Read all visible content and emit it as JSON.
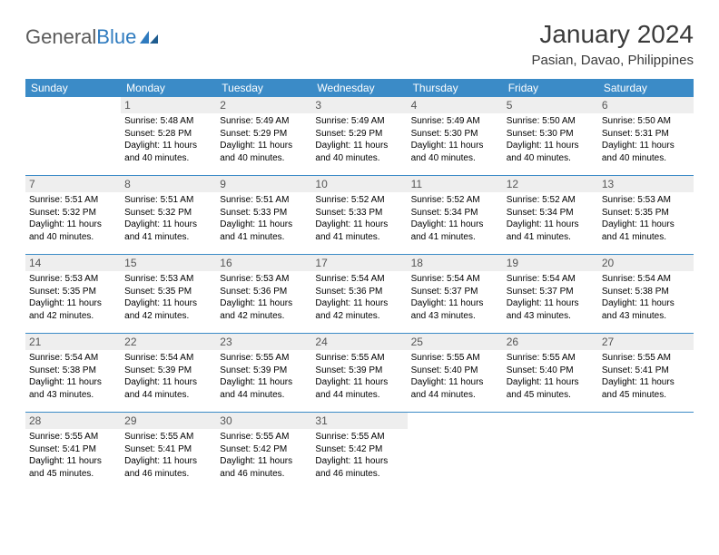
{
  "logo": {
    "text1": "General",
    "text2": "Blue"
  },
  "title": "January 2024",
  "location": "Pasian, Davao, Philippines",
  "colors": {
    "header_bg": "#3b8bc7",
    "header_text": "#ffffff",
    "daynum_bg": "#eeeeee",
    "daynum_text": "#555555",
    "body_text": "#000000",
    "logo_gray": "#5a5a5a",
    "logo_blue": "#2f7bbf",
    "rule": "#3b8bc7"
  },
  "fonts": {
    "title_size_pt": 21,
    "location_size_pt": 11,
    "day_header_size_pt": 9,
    "daynum_size_pt": 9,
    "cell_size_pt": 7.5
  },
  "day_names": [
    "Sunday",
    "Monday",
    "Tuesday",
    "Wednesday",
    "Thursday",
    "Friday",
    "Saturday"
  ],
  "labels": {
    "sunrise": "Sunrise:",
    "sunset": "Sunset:",
    "daylight": "Daylight:"
  },
  "weeks": [
    [
      null,
      {
        "n": "1",
        "r": "5:48 AM",
        "s": "5:28 PM",
        "d": "11 hours and 40 minutes."
      },
      {
        "n": "2",
        "r": "5:49 AM",
        "s": "5:29 PM",
        "d": "11 hours and 40 minutes."
      },
      {
        "n": "3",
        "r": "5:49 AM",
        "s": "5:29 PM",
        "d": "11 hours and 40 minutes."
      },
      {
        "n": "4",
        "r": "5:49 AM",
        "s": "5:30 PM",
        "d": "11 hours and 40 minutes."
      },
      {
        "n": "5",
        "r": "5:50 AM",
        "s": "5:30 PM",
        "d": "11 hours and 40 minutes."
      },
      {
        "n": "6",
        "r": "5:50 AM",
        "s": "5:31 PM",
        "d": "11 hours and 40 minutes."
      }
    ],
    [
      {
        "n": "7",
        "r": "5:51 AM",
        "s": "5:32 PM",
        "d": "11 hours and 40 minutes."
      },
      {
        "n": "8",
        "r": "5:51 AM",
        "s": "5:32 PM",
        "d": "11 hours and 41 minutes."
      },
      {
        "n": "9",
        "r": "5:51 AM",
        "s": "5:33 PM",
        "d": "11 hours and 41 minutes."
      },
      {
        "n": "10",
        "r": "5:52 AM",
        "s": "5:33 PM",
        "d": "11 hours and 41 minutes."
      },
      {
        "n": "11",
        "r": "5:52 AM",
        "s": "5:34 PM",
        "d": "11 hours and 41 minutes."
      },
      {
        "n": "12",
        "r": "5:52 AM",
        "s": "5:34 PM",
        "d": "11 hours and 41 minutes."
      },
      {
        "n": "13",
        "r": "5:53 AM",
        "s": "5:35 PM",
        "d": "11 hours and 41 minutes."
      }
    ],
    [
      {
        "n": "14",
        "r": "5:53 AM",
        "s": "5:35 PM",
        "d": "11 hours and 42 minutes."
      },
      {
        "n": "15",
        "r": "5:53 AM",
        "s": "5:35 PM",
        "d": "11 hours and 42 minutes."
      },
      {
        "n": "16",
        "r": "5:53 AM",
        "s": "5:36 PM",
        "d": "11 hours and 42 minutes."
      },
      {
        "n": "17",
        "r": "5:54 AM",
        "s": "5:36 PM",
        "d": "11 hours and 42 minutes."
      },
      {
        "n": "18",
        "r": "5:54 AM",
        "s": "5:37 PM",
        "d": "11 hours and 43 minutes."
      },
      {
        "n": "19",
        "r": "5:54 AM",
        "s": "5:37 PM",
        "d": "11 hours and 43 minutes."
      },
      {
        "n": "20",
        "r": "5:54 AM",
        "s": "5:38 PM",
        "d": "11 hours and 43 minutes."
      }
    ],
    [
      {
        "n": "21",
        "r": "5:54 AM",
        "s": "5:38 PM",
        "d": "11 hours and 43 minutes."
      },
      {
        "n": "22",
        "r": "5:54 AM",
        "s": "5:39 PM",
        "d": "11 hours and 44 minutes."
      },
      {
        "n": "23",
        "r": "5:55 AM",
        "s": "5:39 PM",
        "d": "11 hours and 44 minutes."
      },
      {
        "n": "24",
        "r": "5:55 AM",
        "s": "5:39 PM",
        "d": "11 hours and 44 minutes."
      },
      {
        "n": "25",
        "r": "5:55 AM",
        "s": "5:40 PM",
        "d": "11 hours and 44 minutes."
      },
      {
        "n": "26",
        "r": "5:55 AM",
        "s": "5:40 PM",
        "d": "11 hours and 45 minutes."
      },
      {
        "n": "27",
        "r": "5:55 AM",
        "s": "5:41 PM",
        "d": "11 hours and 45 minutes."
      }
    ],
    [
      {
        "n": "28",
        "r": "5:55 AM",
        "s": "5:41 PM",
        "d": "11 hours and 45 minutes."
      },
      {
        "n": "29",
        "r": "5:55 AM",
        "s": "5:41 PM",
        "d": "11 hours and 46 minutes."
      },
      {
        "n": "30",
        "r": "5:55 AM",
        "s": "5:42 PM",
        "d": "11 hours and 46 minutes."
      },
      {
        "n": "31",
        "r": "5:55 AM",
        "s": "5:42 PM",
        "d": "11 hours and 46 minutes."
      },
      null,
      null,
      null
    ]
  ]
}
